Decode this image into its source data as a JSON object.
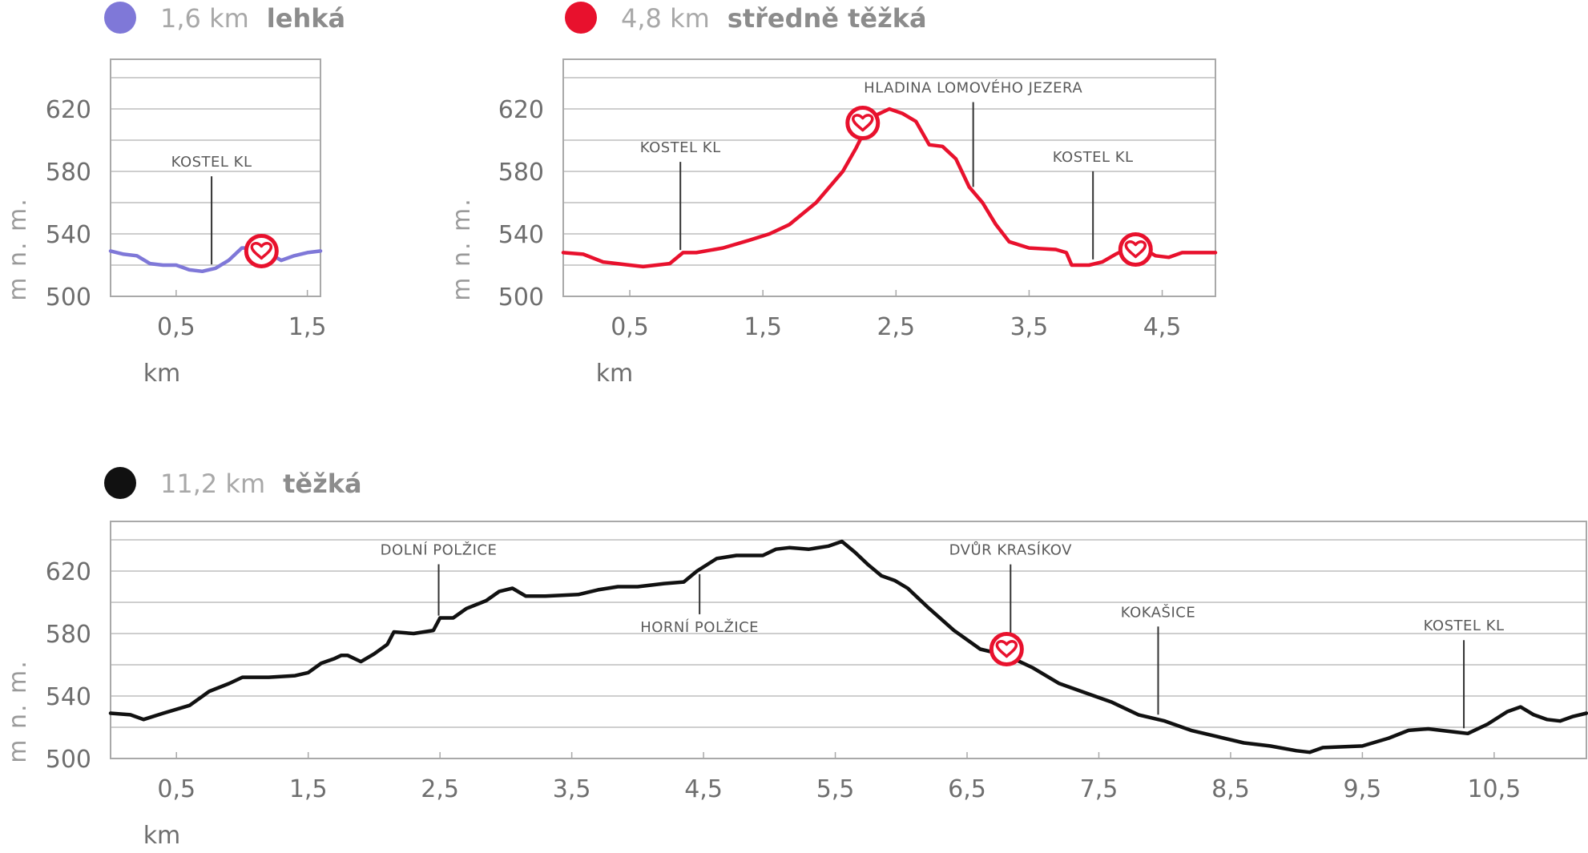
{
  "chart_data": [
    {
      "type": "line",
      "route": {
        "length": "1,6 km",
        "difficulty": "lehká",
        "color": "#7f78d8"
      },
      "ylabel": "m n. m.",
      "xlabel": "km",
      "y_ticks": [
        500,
        540,
        580,
        620
      ],
      "x_ticks": [
        "0,5",
        "1,5"
      ],
      "xlim": [
        0,
        1.6
      ],
      "ylim": [
        500,
        650
      ],
      "grid": true,
      "points": [
        [
          0,
          529
        ],
        [
          0.1,
          527
        ],
        [
          0.2,
          526
        ],
        [
          0.3,
          521
        ],
        [
          0.4,
          520
        ],
        [
          0.5,
          520
        ],
        [
          0.6,
          517
        ],
        [
          0.7,
          516
        ],
        [
          0.8,
          518
        ],
        [
          0.9,
          523
        ],
        [
          1.0,
          531
        ],
        [
          1.1,
          531
        ],
        [
          1.2,
          528
        ],
        [
          1.3,
          523
        ],
        [
          1.4,
          526
        ],
        [
          1.5,
          528
        ],
        [
          1.6,
          529
        ]
      ],
      "landmarks": [
        {
          "label": "KOSTEL KL",
          "x": 0.77
        }
      ],
      "heart_markers": [
        {
          "x": 1.15,
          "y": 529
        }
      ]
    },
    {
      "type": "line",
      "route": {
        "length": "4,8 km",
        "difficulty": "středně těžká",
        "color": "#e8112d"
      },
      "ylabel": "m n. m.",
      "xlabel": "km",
      "y_ticks": [
        500,
        540,
        580,
        620
      ],
      "x_ticks": [
        "0,5",
        "1,5",
        "2,5",
        "3,5",
        "4,5"
      ],
      "xlim": [
        0,
        4.9
      ],
      "ylim": [
        500,
        650
      ],
      "grid": true,
      "points": [
        [
          0,
          528
        ],
        [
          0.15,
          527
        ],
        [
          0.3,
          522
        ],
        [
          0.5,
          520
        ],
        [
          0.6,
          519
        ],
        [
          0.7,
          520
        ],
        [
          0.8,
          521
        ],
        [
          0.9,
          528
        ],
        [
          1.0,
          528
        ],
        [
          1.2,
          531
        ],
        [
          1.4,
          536
        ],
        [
          1.55,
          540
        ],
        [
          1.7,
          546
        ],
        [
          1.9,
          560
        ],
        [
          2.1,
          580
        ],
        [
          2.2,
          595
        ],
        [
          2.3,
          612
        ],
        [
          2.35,
          616
        ],
        [
          2.45,
          620
        ],
        [
          2.55,
          617
        ],
        [
          2.65,
          612
        ],
        [
          2.75,
          597
        ],
        [
          2.85,
          596
        ],
        [
          2.95,
          588
        ],
        [
          3.05,
          570
        ],
        [
          3.15,
          560
        ],
        [
          3.25,
          546
        ],
        [
          3.35,
          535
        ],
        [
          3.5,
          531
        ],
        [
          3.7,
          530
        ],
        [
          3.78,
          528
        ],
        [
          3.82,
          520
        ],
        [
          3.95,
          520
        ],
        [
          4.05,
          522
        ],
        [
          4.15,
          527
        ],
        [
          4.25,
          531
        ],
        [
          4.35,
          531
        ],
        [
          4.45,
          526
        ],
        [
          4.55,
          525
        ],
        [
          4.65,
          528
        ],
        [
          4.8,
          528
        ],
        [
          4.9,
          528
        ]
      ],
      "landmarks": [
        {
          "label": "KOSTEL KL",
          "x": 0.88,
          "label_side": "top"
        },
        {
          "label": "HLADINA LOMOVÉHO JEZERA",
          "x": 3.08,
          "label_side": "top"
        },
        {
          "label": "KOSTEL KL",
          "x": 3.98,
          "label_side": "top"
        }
      ],
      "heart_markers": [
        {
          "x": 2.25,
          "y": 611
        },
        {
          "x": 4.3,
          "y": 530
        }
      ]
    },
    {
      "type": "line",
      "route": {
        "length": "11,2 km",
        "difficulty": "těžká",
        "color": "#111111"
      },
      "ylabel": "m n. m.",
      "xlabel": "km",
      "y_ticks": [
        500,
        540,
        580,
        620
      ],
      "x_ticks": [
        "0,5",
        "1,5",
        "2,5",
        "3,5",
        "4,5",
        "5,5",
        "6,5",
        "7,5",
        "8,5",
        "9,5",
        "10,5"
      ],
      "xlim": [
        0,
        11.2
      ],
      "ylim": [
        500,
        650
      ],
      "grid": true,
      "points": [
        [
          0,
          529
        ],
        [
          0.15,
          528
        ],
        [
          0.25,
          525
        ],
        [
          0.4,
          529
        ],
        [
          0.6,
          534
        ],
        [
          0.75,
          543
        ],
        [
          0.9,
          548
        ],
        [
          1.0,
          552
        ],
        [
          1.2,
          552
        ],
        [
          1.4,
          553
        ],
        [
          1.5,
          555
        ],
        [
          1.6,
          561
        ],
        [
          1.7,
          564
        ],
        [
          1.75,
          566
        ],
        [
          1.8,
          566
        ],
        [
          1.9,
          562
        ],
        [
          2.0,
          567
        ],
        [
          2.1,
          573
        ],
        [
          2.15,
          581
        ],
        [
          2.3,
          580
        ],
        [
          2.45,
          582
        ],
        [
          2.5,
          590
        ],
        [
          2.6,
          590
        ],
        [
          2.7,
          596
        ],
        [
          2.85,
          601
        ],
        [
          2.95,
          607
        ],
        [
          3.05,
          609
        ],
        [
          3.15,
          604
        ],
        [
          3.3,
          604
        ],
        [
          3.55,
          605
        ],
        [
          3.7,
          608
        ],
        [
          3.85,
          610
        ],
        [
          4.0,
          610
        ],
        [
          4.2,
          612
        ],
        [
          4.35,
          613
        ],
        [
          4.45,
          620
        ],
        [
          4.6,
          628
        ],
        [
          4.75,
          630
        ],
        [
          4.95,
          630
        ],
        [
          5.05,
          634
        ],
        [
          5.15,
          635
        ],
        [
          5.3,
          634
        ],
        [
          5.45,
          636
        ],
        [
          5.55,
          639
        ],
        [
          5.65,
          632
        ],
        [
          5.75,
          624
        ],
        [
          5.85,
          617
        ],
        [
          5.95,
          614
        ],
        [
          6.05,
          609
        ],
        [
          6.2,
          597
        ],
        [
          6.4,
          582
        ],
        [
          6.6,
          570
        ],
        [
          6.8,
          566
        ],
        [
          7.0,
          558
        ],
        [
          7.2,
          548
        ],
        [
          7.4,
          542
        ],
        [
          7.6,
          536
        ],
        [
          7.8,
          528
        ],
        [
          8.0,
          524
        ],
        [
          8.2,
          518
        ],
        [
          8.4,
          514
        ],
        [
          8.6,
          510
        ],
        [
          8.8,
          508
        ],
        [
          9.0,
          505
        ],
        [
          9.1,
          504
        ],
        [
          9.2,
          507
        ],
        [
          9.5,
          508
        ],
        [
          9.7,
          513
        ],
        [
          9.85,
          518
        ],
        [
          10.0,
          519
        ],
        [
          10.2,
          517
        ],
        [
          10.3,
          516
        ],
        [
          10.45,
          522
        ],
        [
          10.6,
          530
        ],
        [
          10.7,
          533
        ],
        [
          10.8,
          528
        ],
        [
          10.9,
          525
        ],
        [
          11.0,
          524
        ],
        [
          11.1,
          527
        ],
        [
          11.2,
          529
        ]
      ],
      "landmarks": [
        {
          "label": "DOLNÍ POLŽICE",
          "x": 2.49,
          "label_side": "top"
        },
        {
          "label": "HORNÍ POLŽICE",
          "x": 4.47,
          "label_side": "bottom"
        },
        {
          "label": "DVŮR KRASÍKOV",
          "x": 6.83,
          "label_side": "top"
        },
        {
          "label": "KOKAŠICE",
          "x": 7.95,
          "label_side": "top"
        },
        {
          "label": "KOSTEL KL",
          "x": 10.27,
          "label_side": "top"
        }
      ],
      "heart_markers": [
        {
          "x": 6.8,
          "y": 570
        }
      ]
    }
  ]
}
